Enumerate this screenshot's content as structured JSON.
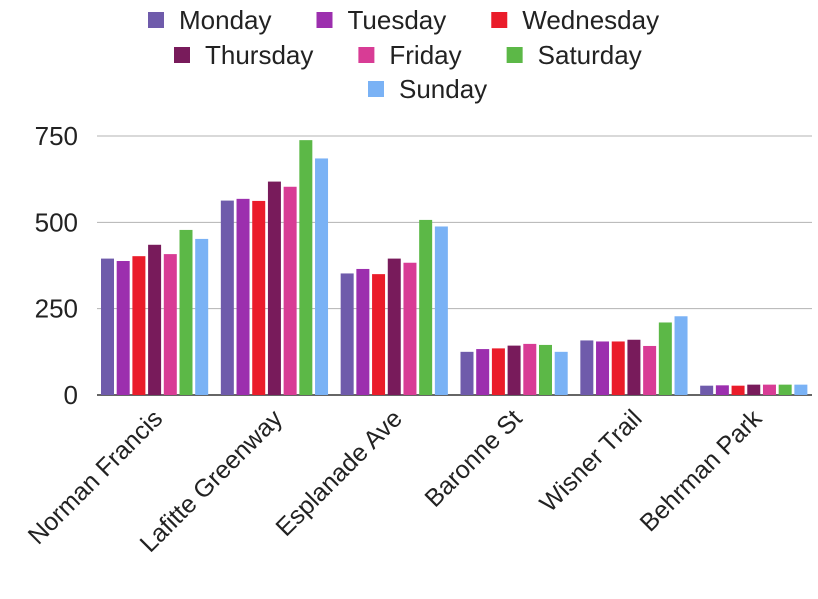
{
  "chart_data": {
    "type": "bar",
    "categories": [
      "Norman Francis",
      "Lafitte Greenway",
      "Esplanade Ave",
      "Baronne St",
      "Wisner Trail",
      "Behrman Park"
    ],
    "series": [
      {
        "name": "Monday",
        "color": "#6f5bab",
        "values": [
          395,
          563,
          352,
          125,
          158,
          27
        ]
      },
      {
        "name": "Tuesday",
        "color": "#9c2fae",
        "values": [
          388,
          568,
          365,
          133,
          155,
          28
        ]
      },
      {
        "name": "Wednesday",
        "color": "#ea1c2a",
        "values": [
          402,
          562,
          350,
          135,
          155,
          27
        ]
      },
      {
        "name": "Thursday",
        "color": "#781b5b",
        "values": [
          435,
          618,
          395,
          143,
          160,
          30
        ]
      },
      {
        "name": "Friday",
        "color": "#d83c95",
        "values": [
          408,
          603,
          383,
          148,
          142,
          30
        ]
      },
      {
        "name": "Saturday",
        "color": "#5cb847",
        "values": [
          478,
          738,
          507,
          145,
          210,
          30
        ]
      },
      {
        "name": "Sunday",
        "color": "#7ab2f5",
        "values": [
          452,
          685,
          488,
          125,
          228,
          30
        ]
      }
    ],
    "yticks": [
      "0",
      "250",
      "500",
      "750"
    ],
    "ylim": [
      0,
      750
    ],
    "legend_position": "top",
    "grid": true
  }
}
